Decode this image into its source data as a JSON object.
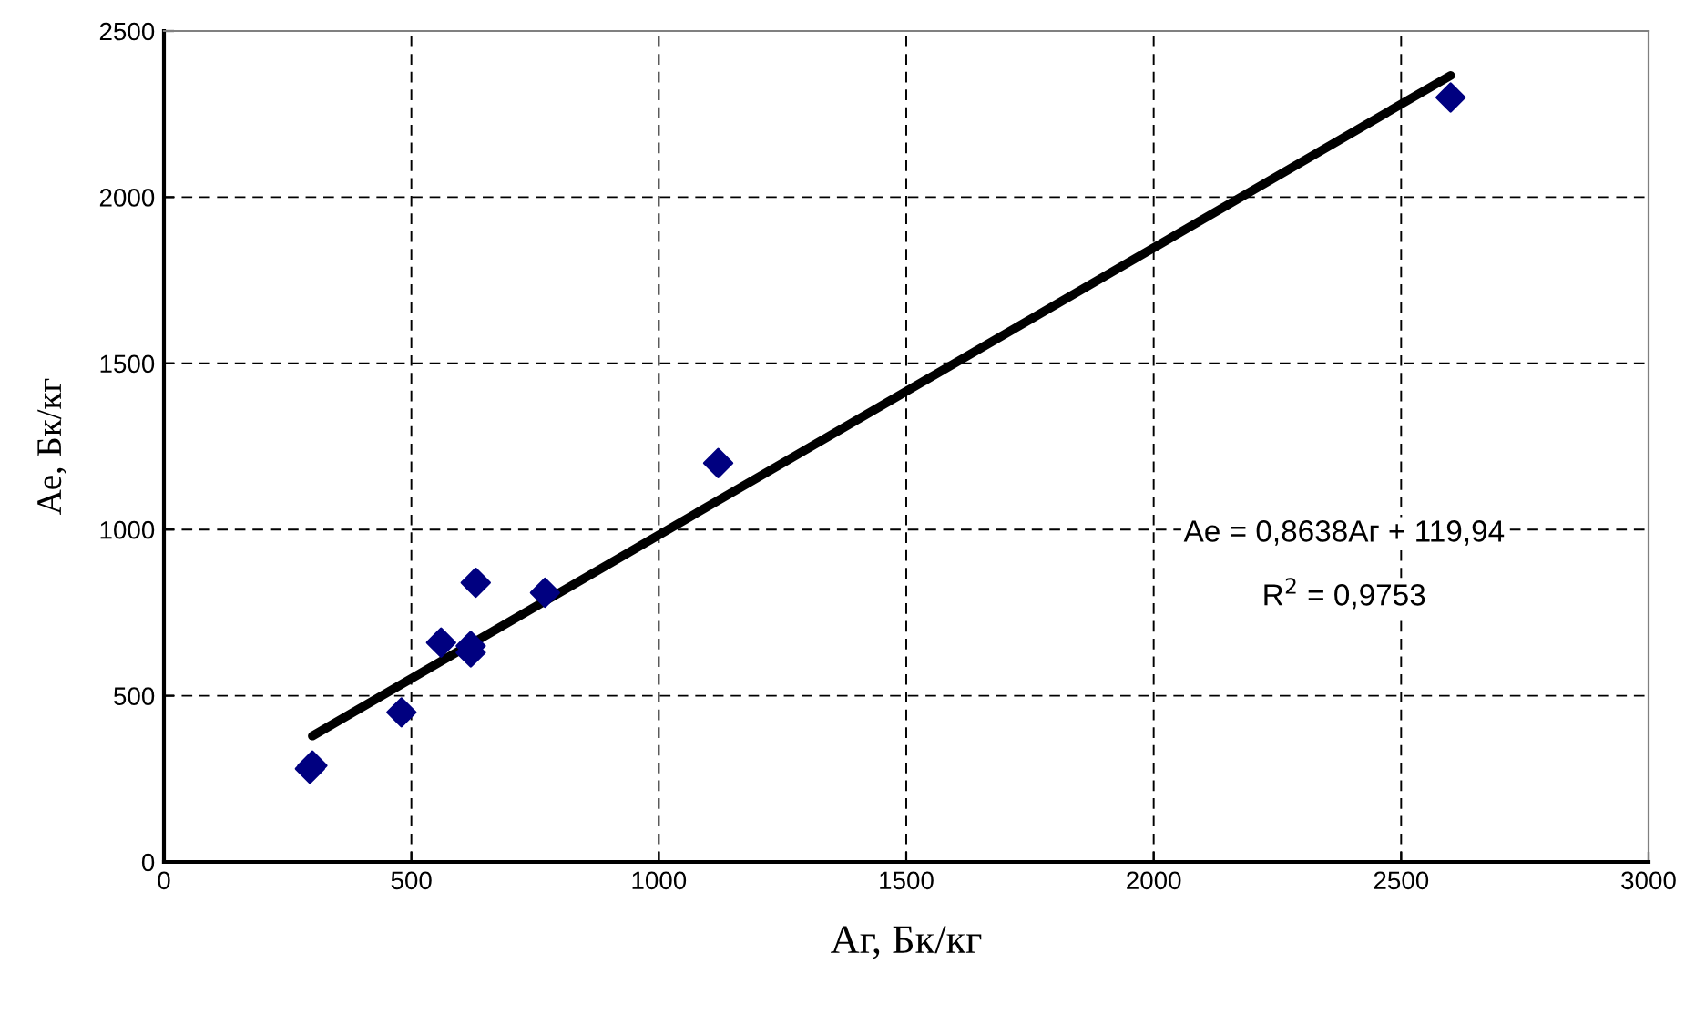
{
  "chart_data": {
    "type": "scatter",
    "xlabel": "Аг, Бк/кг",
    "ylabel": "Ае, Бк/кг",
    "series": [
      {
        "color": "#000080",
        "marker": "diamond",
        "x": [
          295,
          300,
          480,
          560,
          620,
          620,
          630,
          770,
          1120,
          2600
        ],
        "values": [
          280,
          290,
          450,
          660,
          650,
          630,
          840,
          810,
          1200,
          2300
        ]
      },
      {
        "type": "line",
        "color": "#000000",
        "marker": "none",
        "x": [
          300,
          2600
        ],
        "values": [
          379,
          2366
        ]
      }
    ],
    "xlim": [
      0,
      3000
    ],
    "xticks": [
      0,
      500,
      1000,
      1500,
      2000,
      2500,
      3000
    ],
    "ylim": [
      0,
      2500
    ],
    "yticks": [
      0,
      500,
      1000,
      1500,
      2000,
      2500
    ],
    "grid": true,
    "annotations": [
      "Ае = 0,8638Аг + 119,94",
      "R$^{2}$ = 0,9753"
    ]
  }
}
